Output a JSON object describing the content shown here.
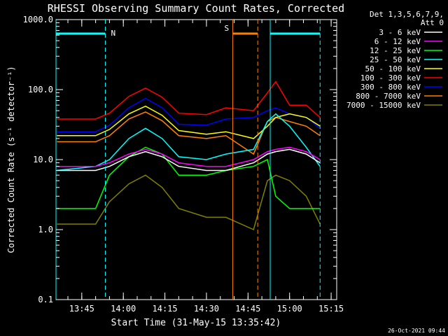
{
  "chart_data": {
    "type": "line",
    "title": "RHESSI Observing Summary Count Rates, Corrected",
    "xlabel": "Start Time (31-May-15 13:35:42)",
    "ylabel": "Corrected Count Rate (s⁻¹ detector⁻¹)",
    "yscale": "log",
    "ylim": [
      0.1,
      1000
    ],
    "xlim": [
      "13:35:42",
      "15:17:00"
    ],
    "y_ticks": [
      "0.1",
      "1.0",
      "10.0",
      "100.0",
      "1000.0"
    ],
    "x_ticks": [
      "13:45",
      "14:00",
      "14:15",
      "14:30",
      "14:45",
      "15:00",
      "15:15"
    ],
    "grid": false,
    "legend_placement": "right",
    "legend_header": [
      "Det 1,3,5,6,7,9,",
      "Att 0"
    ],
    "footer": "26-Oct-2021 09:44",
    "flag_markers": [
      {
        "label": "N",
        "color": "#00ffff",
        "start": "13:35:42",
        "end": "13:53:30"
      },
      {
        "label": "S",
        "color": "#ff8000",
        "start": "14:39:30",
        "end": "14:48:30"
      },
      {
        "label": "",
        "color": "#00ffff",
        "start": "14:53:00",
        "end": "15:11:00"
      }
    ],
    "vertical_lines": [
      {
        "time": "13:35:42",
        "color": "#00ffff",
        "style": "solid"
      },
      {
        "time": "13:53:30",
        "color": "#00ffff",
        "style": "dashed"
      },
      {
        "time": "14:39:30",
        "color": "#ff8000",
        "style": "solid"
      },
      {
        "time": "14:48:30",
        "color": "#ff8000",
        "style": "dashed"
      },
      {
        "time": "14:53:00",
        "color": "#00ffff",
        "style": "solid"
      },
      {
        "time": "15:11:00",
        "color": "#00ffff",
        "style": "dashed"
      }
    ],
    "series": [
      {
        "name": "3 - 6 keV",
        "color": "#ffffff",
        "x": [
          "13:36",
          "13:50",
          "13:55",
          "14:02",
          "14:08",
          "14:14",
          "14:20",
          "14:30",
          "14:37",
          "14:47",
          "14:52",
          "14:55",
          "15:00",
          "15:06",
          "15:11"
        ],
        "y": [
          7,
          7,
          8,
          11,
          13,
          11,
          8,
          7,
          7,
          9,
          12,
          13,
          14,
          12,
          9
        ]
      },
      {
        "name": "6 - 12 keV",
        "color": "#ff00ff",
        "x": [
          "13:36",
          "13:50",
          "13:55",
          "14:02",
          "14:08",
          "14:14",
          "14:20",
          "14:30",
          "14:37",
          "14:47",
          "14:52",
          "14:55",
          "15:00",
          "15:06",
          "15:11"
        ],
        "y": [
          8,
          8,
          9,
          12,
          14,
          12,
          9,
          8,
          8,
          10,
          13,
          14,
          15,
          13,
          10
        ]
      },
      {
        "name": "12 - 25 keV",
        "color": "#00ff00",
        "x": [
          "13:36",
          "13:50",
          "13:55",
          "14:02",
          "14:08",
          "14:14",
          "14:20",
          "14:30",
          "14:37",
          "14:47",
          "14:52",
          "14:55",
          "15:00",
          "15:06",
          "15:11"
        ],
        "y": [
          2,
          2,
          6,
          11,
          15,
          12,
          6,
          6,
          7,
          8,
          10,
          3,
          2,
          2,
          2
        ]
      },
      {
        "name": "25 - 50 keV",
        "color": "#00ffff",
        "x": [
          "13:36",
          "13:50",
          "13:55",
          "14:02",
          "14:08",
          "14:14",
          "14:20",
          "14:30",
          "14:37",
          "14:47",
          "14:52",
          "14:55",
          "15:00",
          "15:06",
          "15:11"
        ],
        "y": [
          7,
          8,
          10,
          20,
          28,
          20,
          11,
          10,
          12,
          14,
          35,
          45,
          30,
          15,
          8
        ]
      },
      {
        "name": "50 - 100 keV",
        "color": "#ffff00",
        "x": [
          "13:36",
          "13:50",
          "13:55",
          "14:02",
          "14:08",
          "14:14",
          "14:20",
          "14:30",
          "14:37",
          "14:47",
          "14:52",
          "14:55",
          "15:00",
          "15:06",
          "15:11"
        ],
        "y": [
          22,
          22,
          27,
          45,
          58,
          43,
          26,
          23,
          25,
          20,
          30,
          40,
          45,
          40,
          30
        ]
      },
      {
        "name": "100 - 300 keV",
        "color": "#ff0000",
        "x": [
          "13:36",
          "13:50",
          "13:55",
          "14:02",
          "14:08",
          "14:14",
          "14:20",
          "14:30",
          "14:37",
          "14:47",
          "14:52",
          "14:55",
          "15:00",
          "15:06",
          "15:11"
        ],
        "y": [
          38,
          38,
          46,
          80,
          105,
          78,
          46,
          44,
          55,
          50,
          90,
          130,
          60,
          60,
          40
        ]
      },
      {
        "name": "300 - 800 keV",
        "color": "#0000ff",
        "x": [
          "13:36",
          "13:50",
          "13:55",
          "14:02",
          "14:08",
          "14:14",
          "14:20",
          "14:30",
          "14:37",
          "14:47",
          "14:52",
          "14:55",
          "15:00",
          "15:06",
          "15:11"
        ],
        "y": [
          25,
          25,
          31,
          55,
          75,
          55,
          32,
          31,
          38,
          40,
          50,
          55,
          45,
          40,
          28
        ]
      },
      {
        "name": "800 - 7000 keV",
        "color": "#ff8000",
        "x": [
          "13:36",
          "13:50",
          "13:55",
          "14:02",
          "14:08",
          "14:14",
          "14:20",
          "14:30",
          "14:37",
          "14:47",
          "14:52",
          "14:55",
          "15:00",
          "15:06",
          "15:11"
        ],
        "y": [
          18,
          18,
          22,
          38,
          48,
          36,
          22,
          20,
          22,
          12,
          35,
          40,
          35,
          30,
          22
        ]
      },
      {
        "name": "7000 - 15000 keV",
        "color": "#808000",
        "x": [
          "13:36",
          "13:50",
          "13:55",
          "14:02",
          "14:08",
          "14:14",
          "14:20",
          "14:30",
          "14:37",
          "14:47",
          "14:52",
          "14:55",
          "15:00",
          "15:06",
          "15:11"
        ],
        "y": [
          1.2,
          1.2,
          2.5,
          4.5,
          6,
          4,
          2,
          1.5,
          1.5,
          1,
          5,
          6,
          5,
          3,
          1.2
        ]
      }
    ]
  }
}
